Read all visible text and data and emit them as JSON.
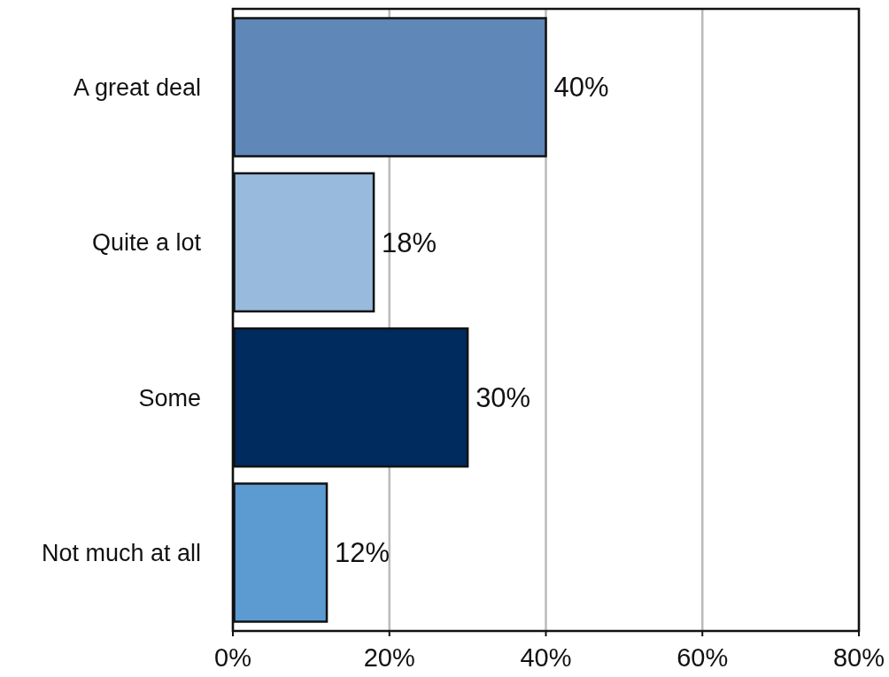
{
  "chart_data": {
    "type": "bar",
    "orientation": "horizontal",
    "categories": [
      "A great deal",
      "Quite a lot",
      "Some",
      "Not much at all"
    ],
    "values": [
      40,
      18,
      30,
      12
    ],
    "colors": [
      "#5f87b8",
      "#98bbdd",
      "#002b5f",
      "#5b9bd2"
    ],
    "value_labels": [
      "40%",
      "18%",
      "30%",
      "12%"
    ],
    "xlim": [
      0,
      80
    ],
    "xticks": [
      {
        "value": 0,
        "label": "0%"
      },
      {
        "value": 20,
        "label": "20%"
      },
      {
        "value": 40,
        "label": "40%"
      },
      {
        "value": 60,
        "label": "60%"
      },
      {
        "value": 80,
        "label": "80%"
      }
    ],
    "grid": "x"
  }
}
